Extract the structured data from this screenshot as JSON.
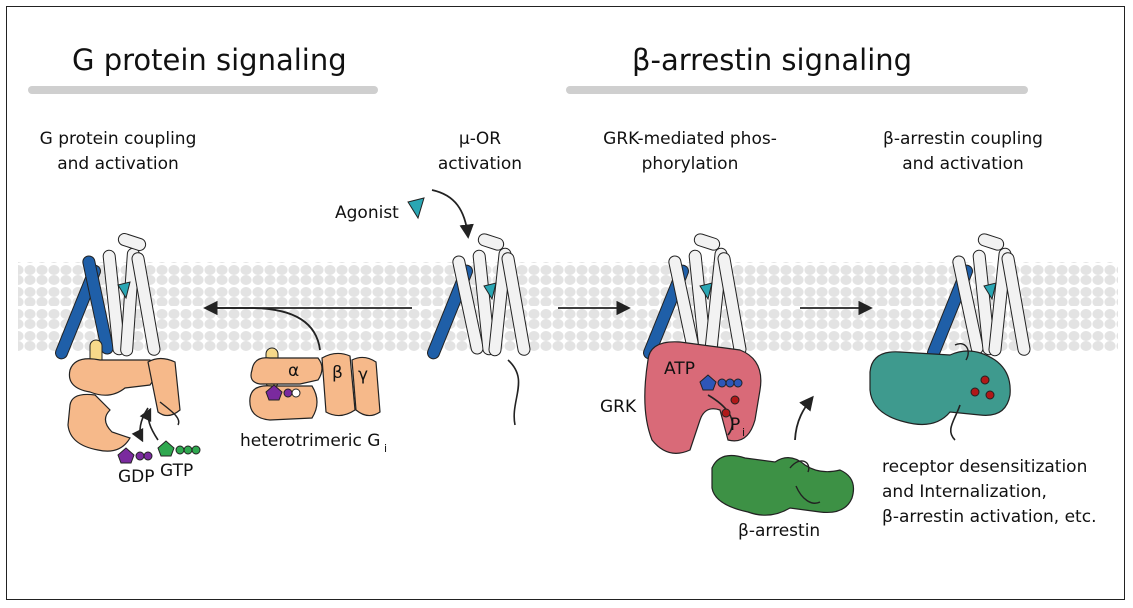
{
  "sections": {
    "g_protein_title": "G protein signaling",
    "arrestin_title": "β-arrestin signaling"
  },
  "steps": {
    "g_coupling": [
      "G protein coupling",
      "and activation"
    ],
    "mor_activation": [
      "μ-OR",
      "activation"
    ],
    "grk_phos": [
      "GRK-mediated phos-",
      "phorylation"
    ],
    "arrestin_coupling": [
      "β-arrestin coupling",
      "and activation"
    ]
  },
  "labels": {
    "agonist": "Agonist",
    "alpha": "α",
    "beta": "β",
    "gamma": "γ",
    "heterotrimeric": "heterotrimeric G",
    "heterotrimeric_sub": "i",
    "gdp": "GDP",
    "gtp": "GTP",
    "atp": "ATP",
    "grk": "GRK",
    "pi": "P",
    "pi_sub": "i",
    "arrestin": "β-arrestin",
    "outcome": [
      "receptor desensitization",
      "and Internalization,",
      "β-arrestin activation, etc."
    ]
  },
  "colors": {
    "membrane": "#e6e6e6",
    "helix_blue": "#1f5fa8",
    "helix_white": "#f2f2f2",
    "agonist": "#2aa6b3",
    "g_protein": "#f6b98a",
    "g_alpha_helix": "#f7d98a",
    "gdp": "#7a2a9e",
    "gtp": "#2fa84f",
    "grk": "#d96a78",
    "atp": "#2e56b8",
    "phosphate": "#b01818",
    "arrestin_free": "#3d9145",
    "arrestin_bound": "#3e9a8e"
  }
}
